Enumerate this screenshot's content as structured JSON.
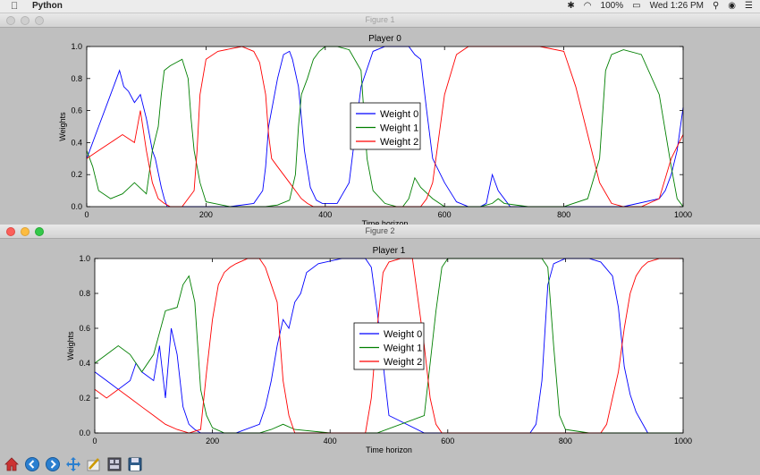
{
  "menubar": {
    "apple_icon": "apple-icon",
    "app_name": "Python",
    "battery": "100%",
    "clock": "Wed 1:26 PM",
    "icons": [
      "bluetooth-icon",
      "wifi-icon",
      "battery-icon",
      "search-icon",
      "user-icon",
      "list-icon"
    ]
  },
  "figure1": {
    "window_title": "Figure 1"
  },
  "figure2": {
    "window_title": "Figure 2"
  },
  "toolbar": {
    "buttons": [
      "home-icon",
      "back-icon",
      "forward-icon",
      "pan-icon",
      "configure-icon",
      "subplots-icon",
      "save-icon"
    ]
  },
  "chart_data": [
    {
      "type": "line",
      "title": "Player 0",
      "xlabel": "Time horizon",
      "ylabel": "Weights",
      "xlim": [
        0,
        1000
      ],
      "ylim": [
        0.0,
        1.0
      ],
      "xticks": [
        "0",
        "200",
        "400",
        "600",
        "800",
        "1000"
      ],
      "yticks": [
        "0.0",
        "0.2",
        "0.4",
        "0.6",
        "0.8",
        "1.0"
      ],
      "legend_position": "center",
      "series": [
        {
          "name": "Weight 0",
          "color": "#0000ff",
          "x": [
            0,
            20,
            40,
            55,
            62,
            70,
            80,
            90,
            100,
            110,
            115,
            125,
            130,
            135,
            140,
            150,
            180,
            240,
            280,
            295,
            300,
            305,
            320,
            330,
            340,
            345,
            355,
            365,
            375,
            385,
            395,
            420,
            440,
            460,
            480,
            500,
            520,
            540,
            550,
            560,
            570,
            580,
            600,
            620,
            640,
            660,
            670,
            680,
            690,
            710,
            740,
            800,
            900,
            960,
            970,
            980,
            990,
            1000
          ],
          "y": [
            0.3,
            0.5,
            0.7,
            0.85,
            0.75,
            0.72,
            0.65,
            0.7,
            0.55,
            0.35,
            0.3,
            0.12,
            0.05,
            0.0,
            0.0,
            0.0,
            0.0,
            0.0,
            0.02,
            0.1,
            0.25,
            0.5,
            0.8,
            0.95,
            0.97,
            0.92,
            0.75,
            0.35,
            0.12,
            0.04,
            0.02,
            0.02,
            0.15,
            0.75,
            0.97,
            1.0,
            1.0,
            1.0,
            0.95,
            0.92,
            0.6,
            0.3,
            0.15,
            0.03,
            0.0,
            0.0,
            0.02,
            0.2,
            0.1,
            0.0,
            0.0,
            0.0,
            0.0,
            0.05,
            0.1,
            0.2,
            0.35,
            0.62
          ]
        },
        {
          "name": "Weight 1",
          "color": "#007f00",
          "x": [
            0,
            10,
            20,
            40,
            60,
            80,
            100,
            110,
            120,
            125,
            130,
            140,
            150,
            160,
            170,
            175,
            180,
            190,
            200,
            240,
            280,
            300,
            320,
            340,
            350,
            355,
            360,
            370,
            380,
            390,
            400,
            420,
            440,
            460,
            470,
            480,
            500,
            520,
            530,
            540,
            550,
            560,
            580,
            600,
            620,
            660,
            680,
            690,
            700,
            740,
            760,
            800,
            840,
            860,
            870,
            880,
            900,
            930,
            960,
            980,
            990,
            1000
          ],
          "y": [
            0.35,
            0.25,
            0.1,
            0.05,
            0.08,
            0.15,
            0.08,
            0.35,
            0.5,
            0.7,
            0.85,
            0.88,
            0.9,
            0.92,
            0.8,
            0.55,
            0.35,
            0.15,
            0.03,
            0.0,
            0.0,
            0.0,
            0.01,
            0.04,
            0.2,
            0.5,
            0.7,
            0.8,
            0.92,
            0.97,
            1.0,
            1.0,
            0.98,
            0.85,
            0.3,
            0.1,
            0.02,
            0.0,
            0.0,
            0.05,
            0.18,
            0.12,
            0.05,
            0.0,
            0.0,
            0.0,
            0.02,
            0.05,
            0.02,
            0.0,
            0.0,
            0.0,
            0.05,
            0.3,
            0.85,
            0.95,
            0.98,
            0.95,
            0.7,
            0.25,
            0.05,
            0.0
          ]
        },
        {
          "name": "Weight 2",
          "color": "#ff0000",
          "x": [
            0,
            20,
            40,
            60,
            80,
            90,
            100,
            110,
            120,
            130,
            140,
            160,
            180,
            185,
            190,
            200,
            220,
            260,
            280,
            290,
            300,
            305,
            310,
            320,
            340,
            350,
            360,
            370,
            380,
            400,
            500,
            540,
            560,
            570,
            580,
            600,
            620,
            640,
            660,
            680,
            700,
            760,
            800,
            820,
            840,
            860,
            880,
            900,
            930,
            960,
            980,
            1000
          ],
          "y": [
            0.3,
            0.35,
            0.4,
            0.45,
            0.4,
            0.6,
            0.35,
            0.15,
            0.05,
            0.02,
            0.0,
            0.0,
            0.1,
            0.35,
            0.7,
            0.92,
            0.97,
            1.0,
            0.97,
            0.9,
            0.7,
            0.45,
            0.3,
            0.25,
            0.15,
            0.1,
            0.05,
            0.02,
            0.0,
            0.0,
            0.0,
            0.0,
            0.0,
            0.05,
            0.15,
            0.7,
            0.95,
            1.0,
            1.0,
            1.0,
            1.0,
            1.0,
            0.97,
            0.75,
            0.45,
            0.15,
            0.02,
            0.0,
            0.0,
            0.05,
            0.3,
            0.45
          ]
        }
      ]
    },
    {
      "type": "line",
      "title": "Player 1",
      "xlabel": "Time horizon",
      "ylabel": "Weights",
      "xlim": [
        0,
        1000
      ],
      "ylim": [
        0.0,
        1.0
      ],
      "xticks": [
        "0",
        "200",
        "400",
        "600",
        "800",
        "1000"
      ],
      "yticks": [
        "0.0",
        "0.2",
        "0.4",
        "0.6",
        "0.8",
        "1.0"
      ],
      "legend_position": "center",
      "series": [
        {
          "name": "Weight 0",
          "color": "#0000ff",
          "x": [
            0,
            20,
            40,
            60,
            70,
            80,
            100,
            110,
            120,
            130,
            140,
            150,
            160,
            170,
            180,
            200,
            240,
            280,
            290,
            300,
            310,
            320,
            330,
            340,
            350,
            360,
            380,
            420,
            440,
            460,
            470,
            480,
            500,
            560,
            580,
            590,
            600,
            610,
            620,
            660,
            700,
            740,
            750,
            760,
            770,
            780,
            800,
            820,
            840,
            860,
            880,
            890,
            900,
            910,
            920,
            940,
            1000
          ],
          "y": [
            0.35,
            0.3,
            0.25,
            0.3,
            0.4,
            0.35,
            0.3,
            0.5,
            0.2,
            0.6,
            0.45,
            0.15,
            0.05,
            0.02,
            0.0,
            0.0,
            0.0,
            0.05,
            0.15,
            0.3,
            0.5,
            0.65,
            0.6,
            0.75,
            0.8,
            0.92,
            0.97,
            1.0,
            1.0,
            1.0,
            0.95,
            0.7,
            0.1,
            0.0,
            0.0,
            0.0,
            0.0,
            0.0,
            0.0,
            0.0,
            0.0,
            0.0,
            0.05,
            0.3,
            0.85,
            0.97,
            1.0,
            1.0,
            1.0,
            0.98,
            0.9,
            0.72,
            0.38,
            0.22,
            0.12,
            0.0,
            0.0
          ]
        },
        {
          "name": "Weight 1",
          "color": "#007f00",
          "x": [
            0,
            20,
            40,
            60,
            80,
            100,
            120,
            140,
            150,
            160,
            170,
            180,
            190,
            200,
            220,
            240,
            280,
            300,
            320,
            340,
            400,
            480,
            560,
            570,
            580,
            590,
            600,
            640,
            700,
            760,
            770,
            780,
            790,
            800,
            840,
            860,
            880,
            900,
            1000
          ],
          "y": [
            0.4,
            0.45,
            0.5,
            0.45,
            0.35,
            0.45,
            0.7,
            0.72,
            0.85,
            0.9,
            0.75,
            0.25,
            0.1,
            0.03,
            0.0,
            0.0,
            0.0,
            0.02,
            0.05,
            0.02,
            0.0,
            0.0,
            0.1,
            0.4,
            0.7,
            0.95,
            1.0,
            1.0,
            1.0,
            1.0,
            0.95,
            0.5,
            0.1,
            0.02,
            0.0,
            0.0,
            0.0,
            0.0,
            0.0
          ]
        },
        {
          "name": "Weight 2",
          "color": "#ff0000",
          "x": [
            0,
            20,
            40,
            60,
            80,
            100,
            120,
            140,
            160,
            180,
            190,
            200,
            210,
            220,
            230,
            240,
            260,
            280,
            290,
            300,
            310,
            320,
            330,
            340,
            380,
            460,
            470,
            480,
            490,
            500,
            520,
            540,
            560,
            570,
            580,
            590,
            600,
            680,
            760,
            800,
            860,
            870,
            880,
            890,
            900,
            910,
            920,
            930,
            940,
            960,
            1000
          ],
          "y": [
            0.25,
            0.2,
            0.25,
            0.2,
            0.15,
            0.1,
            0.05,
            0.02,
            0.0,
            0.02,
            0.35,
            0.65,
            0.85,
            0.92,
            0.95,
            0.97,
            1.0,
            1.0,
            0.95,
            0.85,
            0.75,
            0.3,
            0.1,
            0.0,
            0.0,
            0.0,
            0.2,
            0.6,
            0.92,
            0.98,
            1.0,
            1.0,
            0.5,
            0.2,
            0.05,
            0.0,
            0.0,
            0.0,
            0.0,
            0.0,
            0.0,
            0.05,
            0.2,
            0.35,
            0.6,
            0.8,
            0.9,
            0.95,
            0.98,
            1.0,
            1.0
          ]
        }
      ]
    }
  ]
}
